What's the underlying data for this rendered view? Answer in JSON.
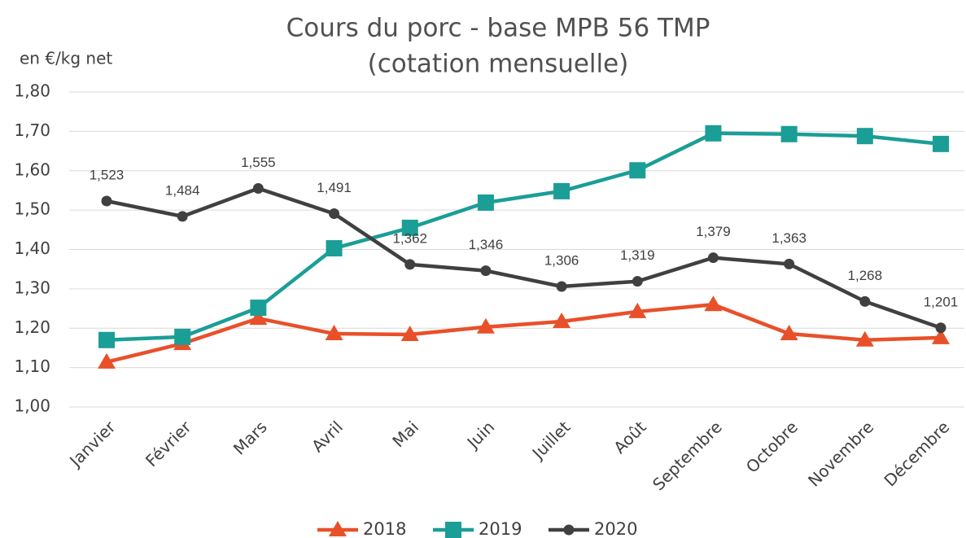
{
  "chart_data": {
    "type": "line",
    "title": [
      "Cours du porc - base MPB 56 TMP",
      "(cotation mensuelle)"
    ],
    "y_label": "en €/kg net",
    "categories": [
      "Janvier",
      "Février",
      "Mars",
      "Avril",
      "Mai",
      "Juin",
      "Juillet",
      "Août",
      "Septembre",
      "Octobre",
      "Novembre",
      "Décembre"
    ],
    "series": [
      {
        "name": "2018",
        "color": "#E8502A",
        "marker": "triangle",
        "values": [
          1.114,
          1.161,
          1.225,
          1.186,
          1.184,
          1.203,
          1.217,
          1.242,
          1.26,
          1.186,
          1.17,
          1.176
        ]
      },
      {
        "name": "2019",
        "color": "#1A9E96",
        "marker": "square",
        "values": [
          1.17,
          1.178,
          1.252,
          1.403,
          1.455,
          1.519,
          1.548,
          1.601,
          1.695,
          1.693,
          1.688,
          1.668
        ]
      },
      {
        "name": "2020",
        "color": "#404040",
        "marker": "circle",
        "values": [
          1.523,
          1.484,
          1.555,
          1.491,
          1.362,
          1.346,
          1.306,
          1.319,
          1.379,
          1.363,
          1.268,
          1.201
        ],
        "value_labels": [
          "1,523",
          "1,484",
          "1,555",
          "1,491",
          "1,362",
          "1,346",
          "1,306",
          "1,319",
          "1,379",
          "1,363",
          "1,268",
          "1,201"
        ]
      }
    ],
    "ylim": [
      1.0,
      1.8
    ],
    "yticks": [
      {
        "value": 1.0,
        "label": "1,00"
      },
      {
        "value": 1.1,
        "label": "1,10"
      },
      {
        "value": 1.2,
        "label": "1,20"
      },
      {
        "value": 1.3,
        "label": "1,30"
      },
      {
        "value": 1.4,
        "label": "1,40"
      },
      {
        "value": 1.5,
        "label": "1,50"
      },
      {
        "value": 1.6,
        "label": "1,60"
      },
      {
        "value": 1.7,
        "label": "1,70"
      },
      {
        "value": 1.8,
        "label": "1,80"
      }
    ],
    "grid": true,
    "legend": "bottom"
  }
}
